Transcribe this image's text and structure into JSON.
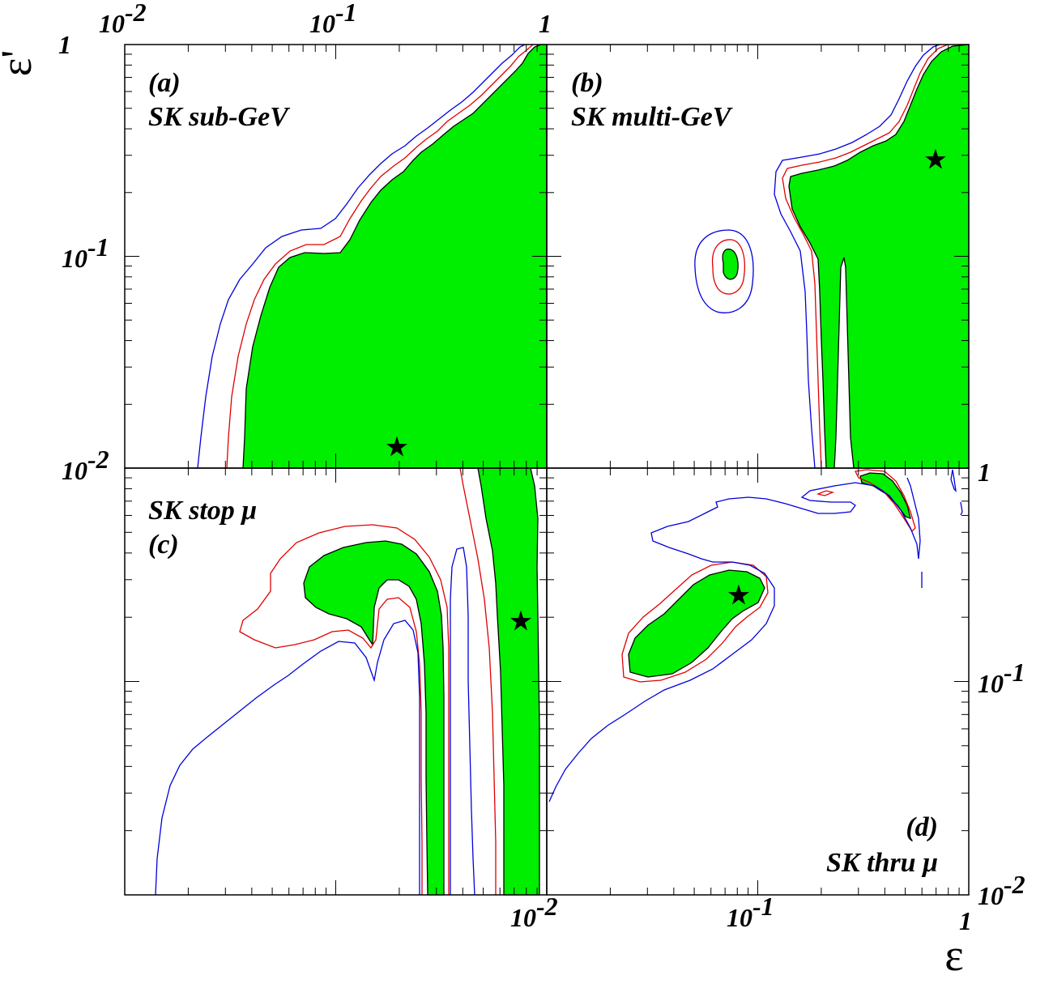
{
  "x_axis_label": "ε",
  "y_axis_label": "ε'",
  "tick_labels": {
    "top": [
      "10",
      "-2",
      "10",
      "-1",
      "1"
    ],
    "left": [
      "1",
      "10",
      "-1",
      "10",
      "-2"
    ],
    "right": [
      "1",
      "10",
      "-1",
      "10",
      "-2"
    ],
    "bottom": [
      "10",
      "-2",
      "10",
      "-1",
      "1"
    ]
  },
  "colors": {
    "allowed_fill": "#00ee00",
    "outline_black": "#000000",
    "contour_red": "#e00000",
    "contour_blue": "#0000dd",
    "best_fit_marker": "#000000"
  },
  "chart_data": [
    {
      "type": "contour",
      "panel": "a",
      "label": "(a)",
      "sample": "SK sub-GeV",
      "xlim": [
        0.01,
        1
      ],
      "ylim": [
        0.01,
        1
      ],
      "xscale": "log",
      "yscale": "log",
      "best_fit": {
        "x": 0.2,
        "y": 0.0125
      }
    },
    {
      "type": "contour",
      "panel": "b",
      "label": "(b)",
      "sample": "SK multi-GeV",
      "xlim": [
        0.01,
        1
      ],
      "ylim": [
        0.01,
        1
      ],
      "xscale": "log",
      "yscale": "log",
      "best_fit": {
        "x": 0.65,
        "y": 0.3
      }
    },
    {
      "type": "contour",
      "panel": "c",
      "label": "(c)",
      "sample": "SK stop μ",
      "xlim": [
        0.01,
        1
      ],
      "ylim": [
        0.01,
        1
      ],
      "xscale": "log",
      "yscale": "log",
      "best_fit": {
        "x": 0.8,
        "y": 0.2
      }
    },
    {
      "type": "contour",
      "panel": "d",
      "label": "(d)",
      "sample": "SK thru μ",
      "xlim": [
        0.01,
        1
      ],
      "ylim": [
        0.01,
        1
      ],
      "xscale": "log",
      "yscale": "log",
      "best_fit": {
        "x": 0.085,
        "y": 0.26
      }
    }
  ]
}
